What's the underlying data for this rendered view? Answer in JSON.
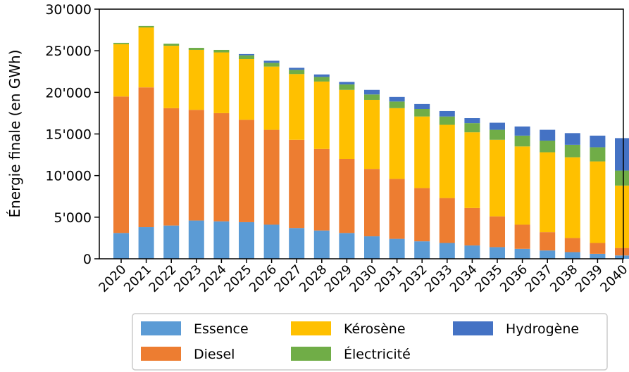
{
  "chart_data": {
    "type": "bar",
    "stacked": true,
    "ylabel": "Énergie finale (en GWh)",
    "xlabel": "",
    "ylim": [
      0,
      30000
    ],
    "yticks": [
      0,
      5000,
      10000,
      15000,
      20000,
      25000,
      30000
    ],
    "ytick_labels": [
      "0",
      "5'000",
      "10'000",
      "15'000",
      "20'000",
      "25'000",
      "30'000"
    ],
    "grid": false,
    "legend_position": "bottom",
    "categories": [
      "2020",
      "2021",
      "2022",
      "2023",
      "2024",
      "2025",
      "2026",
      "2027",
      "2028",
      "2029",
      "2030",
      "2031",
      "2032",
      "2033",
      "2034",
      "2035",
      "2036",
      "2037",
      "2038",
      "2039",
      "2040"
    ],
    "series": [
      {
        "name": "Essence",
        "color": "#5b9bd5",
        "values": [
          3100,
          3800,
          4000,
          4600,
          4500,
          4400,
          4100,
          3700,
          3400,
          3100,
          2700,
          2400,
          2100,
          1900,
          1600,
          1400,
          1200,
          1000,
          800,
          600,
          400
        ]
      },
      {
        "name": "Diesel",
        "color": "#ed7d31",
        "values": [
          16400,
          16800,
          14100,
          13300,
          13000,
          12300,
          11400,
          10600,
          9800,
          8900,
          8100,
          7200,
          6400,
          5400,
          4500,
          3700,
          2900,
          2200,
          1700,
          1300,
          900
        ]
      },
      {
        "name": "Kérosène",
        "color": "#ffc000",
        "values": [
          6300,
          7200,
          7500,
          7200,
          7300,
          7300,
          7600,
          7900,
          8100,
          8300,
          8300,
          8500,
          8600,
          8800,
          9100,
          9200,
          9400,
          9600,
          9700,
          9800,
          7500
        ]
      },
      {
        "name": "Électricité",
        "color": "#70ad47",
        "values": [
          150,
          180,
          250,
          250,
          300,
          450,
          450,
          500,
          550,
          650,
          650,
          800,
          900,
          1000,
          1100,
          1200,
          1300,
          1400,
          1500,
          1700,
          1800
        ]
      },
      {
        "name": "Hydrogène",
        "color": "#4472c4",
        "values": [
          0,
          0,
          0,
          0,
          0,
          150,
          250,
          250,
          300,
          300,
          550,
          550,
          600,
          650,
          600,
          850,
          1100,
          1300,
          1400,
          1400,
          3900
        ]
      }
    ]
  }
}
